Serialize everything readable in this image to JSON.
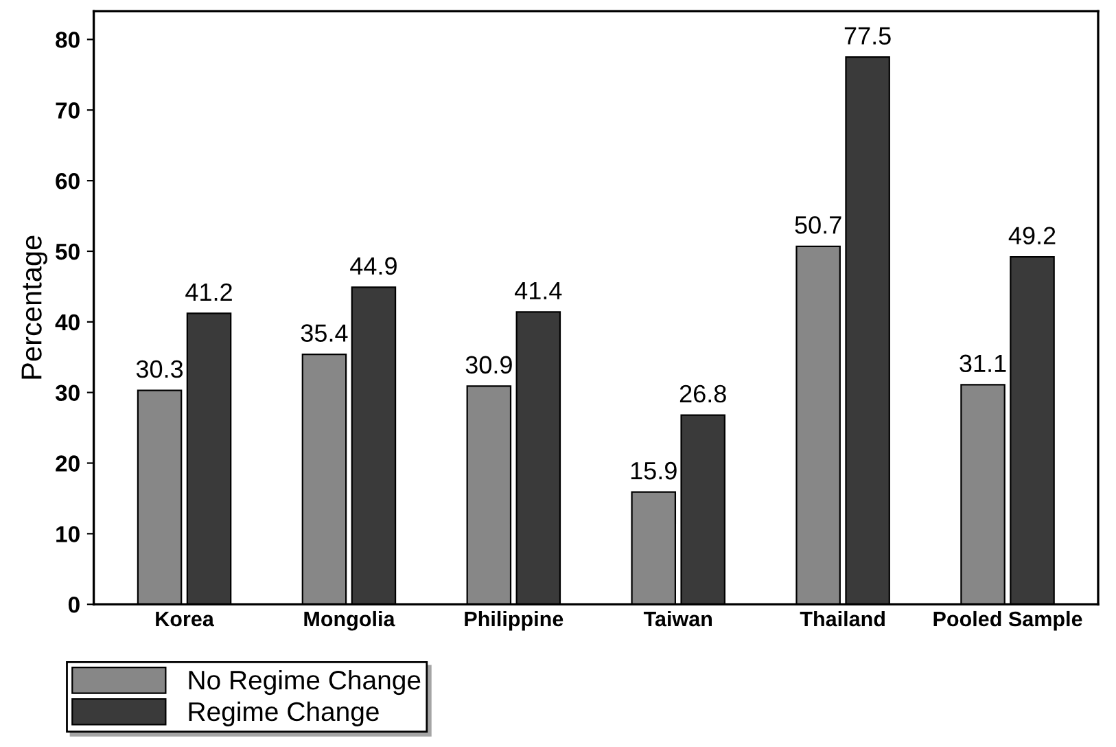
{
  "chart_data": {
    "type": "bar",
    "ylabel": "Percentage",
    "categories": [
      "Korea",
      "Mongolia",
      "Philippine",
      "Taiwan",
      "Thailand",
      "Pooled Sample"
    ],
    "series": [
      {
        "name": "No Regime Change",
        "color": "#878787",
        "values": [
          30.3,
          35.4,
          30.9,
          15.9,
          50.7,
          31.1
        ]
      },
      {
        "name": "Regime Change",
        "color": "#3a3a3a",
        "values": [
          41.2,
          44.9,
          41.4,
          26.8,
          77.5,
          49.2
        ]
      }
    ],
    "ylim": [
      0,
      84
    ],
    "yticks": [
      0,
      10,
      20,
      30,
      40,
      50,
      60,
      70,
      80
    ],
    "grid": false,
    "legend": "bottom left",
    "data_labels": true
  }
}
